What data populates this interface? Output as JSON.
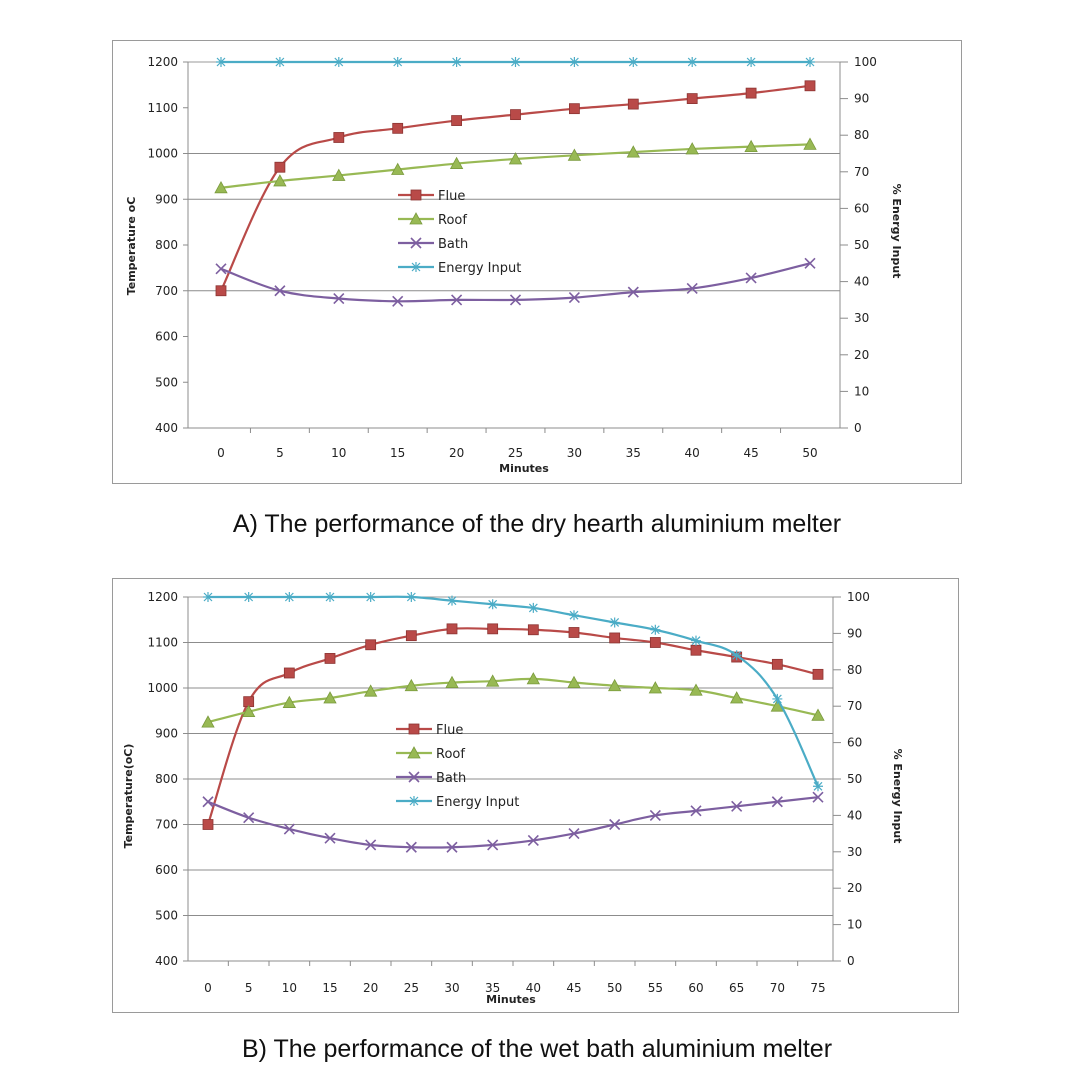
{
  "captions": {
    "a": "A) The performance of the dry hearth aluminium melter",
    "b": "B) The performance of the wet bath aluminium melter"
  },
  "chart_data": [
    {
      "type": "line",
      "xlabel": "Minutes",
      "ylabel": "Temperature oC",
      "y2label": "% Energy Input",
      "x": [
        0,
        5,
        10,
        15,
        20,
        25,
        30,
        35,
        40,
        45,
        50
      ],
      "ylim": [
        400,
        1200
      ],
      "yticks": [
        400,
        500,
        600,
        700,
        800,
        900,
        1000,
        1100,
        1200
      ],
      "y2lim": [
        0,
        100
      ],
      "y2ticks": [
        0,
        10,
        20,
        30,
        40,
        50,
        60,
        70,
        80,
        90,
        100
      ],
      "grid": "horizontal at 700, 900, 1000, 1200",
      "gridlines": [
        700,
        900,
        1000,
        1200
      ],
      "legend_position": "center",
      "series": [
        {
          "name": "Flue",
          "axis": "left",
          "color": "#b94a48",
          "marker": "square",
          "values": [
            700,
            970,
            1035,
            1055,
            1072,
            1085,
            1098,
            1108,
            1120,
            1132,
            1148
          ]
        },
        {
          "name": "Roof",
          "axis": "left",
          "color": "#98b954",
          "marker": "triangle",
          "values": [
            925,
            940,
            952,
            965,
            978,
            988,
            996,
            1003,
            1010,
            1015,
            1020
          ]
        },
        {
          "name": "Bath",
          "axis": "left",
          "color": "#7d5fa0",
          "marker": "x",
          "values": [
            748,
            700,
            683,
            677,
            680,
            680,
            685,
            697,
            705,
            728,
            760
          ]
        },
        {
          "name": "Energy Input",
          "axis": "right",
          "color": "#4bacc6",
          "marker": "asterisk",
          "values": [
            100,
            100,
            100,
            100,
            100,
            100,
            100,
            100,
            100,
            100,
            100
          ]
        }
      ]
    },
    {
      "type": "line",
      "xlabel": "Minutes",
      "ylabel": "Temperature(oC)",
      "y2label": "% Energy Input",
      "x": [
        0,
        5,
        10,
        15,
        20,
        25,
        30,
        35,
        40,
        45,
        50,
        55,
        60,
        65,
        70,
        75
      ],
      "ylim": [
        400,
        1200
      ],
      "yticks": [
        400,
        500,
        600,
        700,
        800,
        900,
        1000,
        1100,
        1200
      ],
      "y2lim": [
        0,
        100
      ],
      "y2ticks": [
        0,
        10,
        20,
        30,
        40,
        50,
        60,
        70,
        80,
        90,
        100
      ],
      "grid": "horizontal at every 100",
      "gridlines": [
        500,
        600,
        700,
        800,
        900,
        1000,
        1100,
        1200
      ],
      "legend_position": "center",
      "series": [
        {
          "name": "Flue",
          "axis": "left",
          "color": "#b94a48",
          "marker": "square",
          "values": [
            700,
            970,
            1033,
            1065,
            1095,
            1115,
            1130,
            1130,
            1128,
            1122,
            1110,
            1100,
            1083,
            1068,
            1052,
            1030
          ]
        },
        {
          "name": "Roof",
          "axis": "left",
          "color": "#98b954",
          "marker": "triangle",
          "values": [
            925,
            948,
            968,
            978,
            993,
            1005,
            1012,
            1015,
            1020,
            1012,
            1005,
            1000,
            995,
            978,
            960,
            940
          ]
        },
        {
          "name": "Bath",
          "axis": "left",
          "color": "#7d5fa0",
          "marker": "x",
          "values": [
            750,
            715,
            690,
            670,
            655,
            650,
            650,
            655,
            665,
            680,
            700,
            720,
            730,
            740,
            750,
            760
          ]
        },
        {
          "name": "Energy Input",
          "axis": "right",
          "color": "#4bacc6",
          "marker": "asterisk",
          "values": [
            100,
            100,
            100,
            100,
            100,
            100,
            99,
            98,
            97,
            95,
            93,
            91,
            88,
            84,
            72,
            48
          ]
        }
      ]
    }
  ]
}
